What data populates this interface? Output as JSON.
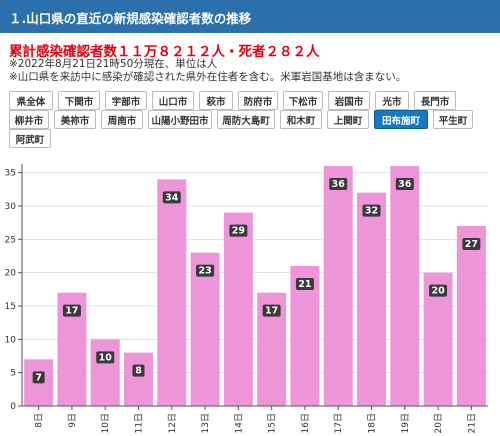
{
  "header": {
    "title": "１.山口県の直近の新規感染確認者数の推移"
  },
  "summary": {
    "text": "累計感染確認者数１１万８２１２人・死者２８２人"
  },
  "notes": [
    "※2022年8月21日21時50分現在、単位は人",
    "※山口県を来訪中に感染が確認された県外在住者を含む。米軍岩国基地は含まない。"
  ],
  "area_buttons": [
    [
      "県全体",
      "下関市",
      "宇部市",
      "山口市",
      "萩市",
      "防府市",
      "下松市",
      "岩国市",
      "光市",
      "長門市"
    ],
    [
      "柳井市",
      "美祢市",
      "周南市",
      "山陽小野田市",
      "周防大島町",
      "和木町",
      "上関町",
      "田布施町",
      "平生町"
    ],
    [
      "阿武町"
    ]
  ],
  "active_button": "田布施町",
  "colors": {
    "bar": "#ee94d8",
    "header": "#2b6fad",
    "accent": "#e60012",
    "active": "#1779c2"
  },
  "chart_data": {
    "type": "bar",
    "categories": [
      "8日",
      "9日",
      "10日",
      "11日",
      "12日",
      "13日",
      "14日",
      "15日",
      "16日",
      "17日",
      "18日",
      "19日",
      "20日",
      "21日"
    ],
    "values": [
      7,
      17,
      10,
      8,
      34,
      23,
      29,
      17,
      21,
      36,
      32,
      36,
      20,
      27
    ],
    "ylim": [
      0,
      36
    ],
    "yticks": [
      0,
      5,
      10,
      15,
      20,
      25,
      30,
      35
    ],
    "grid": true,
    "data_labels": true,
    "legend": "none"
  }
}
